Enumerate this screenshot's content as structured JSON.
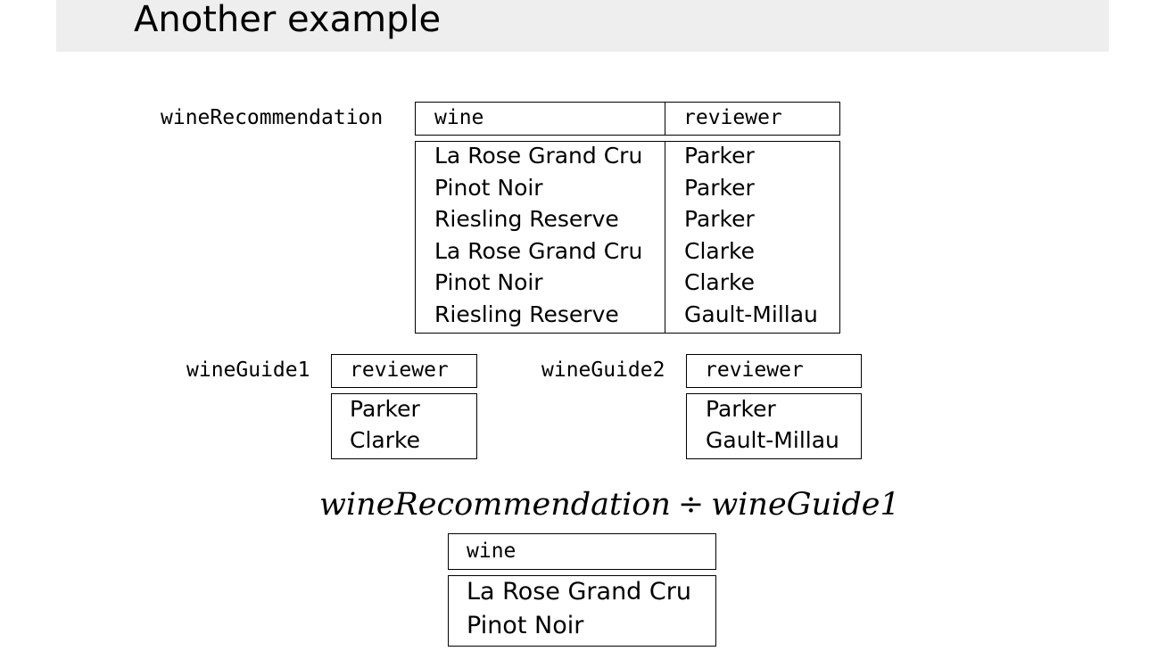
{
  "slide": {
    "title": "Another example"
  },
  "wine_recommendation": {
    "name": "wineRecommendation",
    "headers": [
      "wine",
      "reviewer"
    ],
    "rows": [
      [
        "La Rose Grand Cru",
        "Parker"
      ],
      [
        "Pinot Noir",
        "Parker"
      ],
      [
        "Riesling Reserve",
        "Parker"
      ],
      [
        "La Rose Grand Cru",
        "Clarke"
      ],
      [
        "Pinot Noir",
        "Clarke"
      ],
      [
        "Riesling Reserve",
        "Gault-Millau"
      ]
    ]
  },
  "wine_guide1": {
    "name": "wineGuide1",
    "headers": [
      "reviewer"
    ],
    "rows": [
      "Parker",
      "Clarke"
    ]
  },
  "wine_guide2": {
    "name": "wineGuide2",
    "headers": [
      "reviewer"
    ],
    "rows": [
      "Parker",
      "Gault-Millau"
    ]
  },
  "division": {
    "left": "wineRecommendation",
    "operator": "÷",
    "right": "wineGuide1"
  },
  "result": {
    "headers": [
      "wine"
    ],
    "rows": [
      "La Rose Grand Cru",
      "Pinot Noir"
    ]
  }
}
